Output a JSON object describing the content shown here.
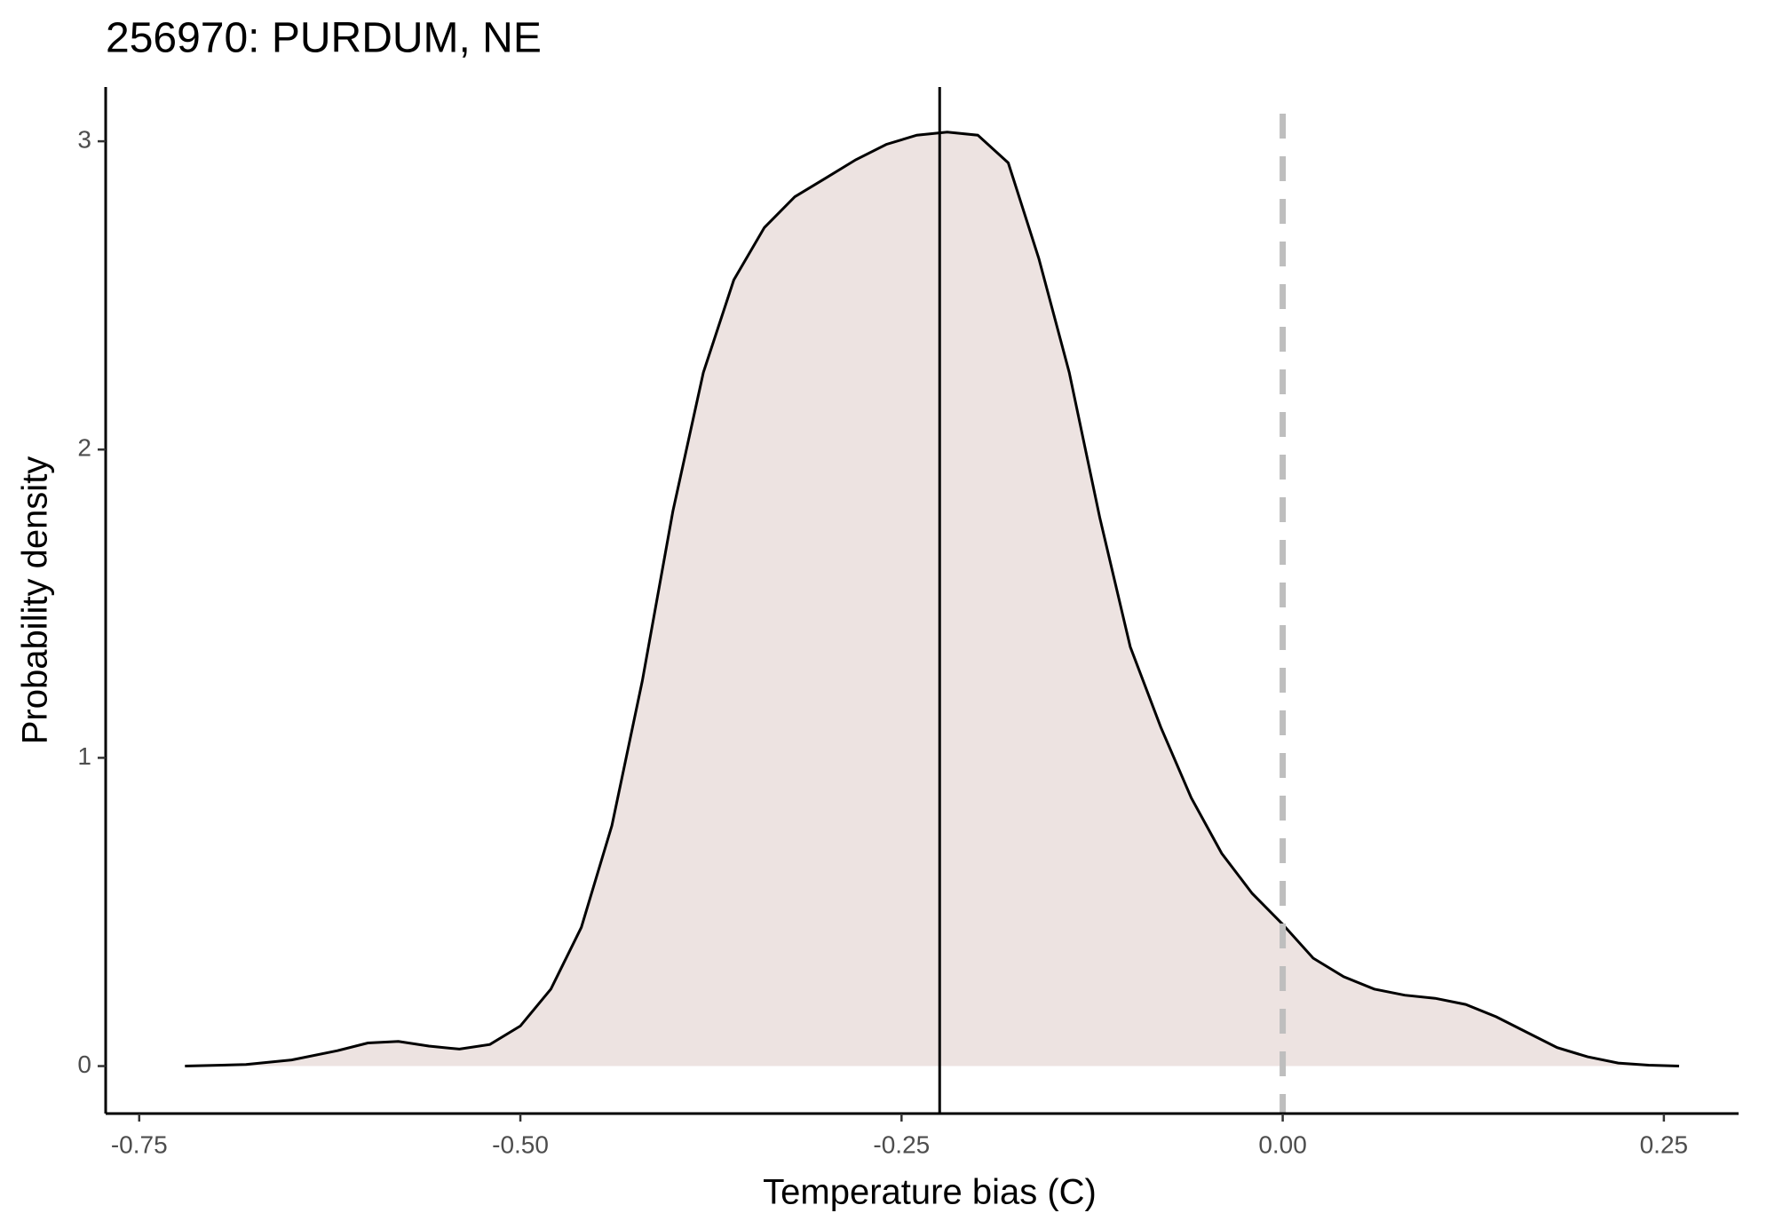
{
  "chart_data": {
    "type": "density",
    "title": "256970: PURDUM, NE",
    "x_label": "Temperature bias (C)",
    "y_label": "Probability density",
    "x": [
      -0.72,
      -0.68,
      -0.65,
      -0.62,
      -0.6,
      -0.58,
      -0.56,
      -0.54,
      -0.52,
      -0.5,
      -0.48,
      -0.46,
      -0.44,
      -0.42,
      -0.4,
      -0.38,
      -0.36,
      -0.34,
      -0.32,
      -0.3,
      -0.28,
      -0.26,
      -0.24,
      -0.22,
      -0.2,
      -0.18,
      -0.16,
      -0.14,
      -0.12,
      -0.1,
      -0.08,
      -0.06,
      -0.04,
      -0.02,
      0,
      0.02,
      0.04,
      0.06,
      0.08,
      0.1,
      0.12,
      0.14,
      0.16,
      0.18,
      0.2,
      0.22,
      0.24,
      0.26
    ],
    "values": [
      0,
      0.005,
      0.02,
      0.05,
      0.075,
      0.08,
      0.065,
      0.055,
      0.07,
      0.13,
      0.25,
      0.45,
      0.78,
      1.25,
      1.8,
      2.25,
      2.55,
      2.72,
      2.82,
      2.88,
      2.94,
      2.99,
      3.02,
      3.03,
      3.02,
      2.93,
      2.62,
      2.25,
      1.78,
      1.36,
      1.1,
      0.87,
      0.69,
      0.56,
      0.46,
      0.35,
      0.29,
      0.25,
      0.23,
      0.22,
      0.2,
      0.16,
      0.11,
      0.06,
      0.03,
      0.01,
      0.003,
      0
    ],
    "fill_color": "#ede3e1",
    "line_color": "#000000",
    "vlines": [
      {
        "x": -0.225,
        "style": "solid",
        "color": "#000000"
      },
      {
        "x": 0,
        "style": "dashed",
        "color": "#bebebe"
      }
    ],
    "xlim": [
      -0.772,
      0.299
    ],
    "ylim": [
      -0.154,
      3.176
    ],
    "xticks": [
      -0.75,
      {
        "value": -0.5,
        "label": "-0.50"
      },
      {
        "value": -0.25,
        "label": "-0.25"
      },
      {
        "value": 0,
        "label": "0.00"
      },
      0.25
    ],
    "yticks": [
      0,
      1,
      2,
      3
    ]
  }
}
